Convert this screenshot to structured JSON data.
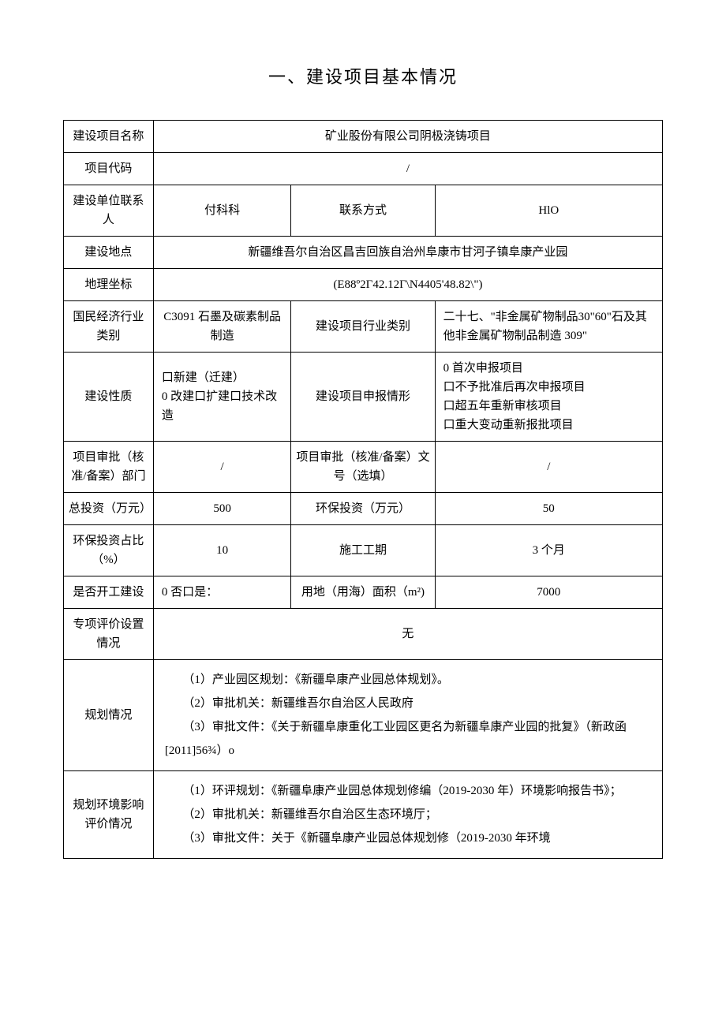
{
  "title": "一、建设项目基本情况",
  "rows": {
    "project_name_label": "建设项目名称",
    "project_name_value": "矿业股份有限公司阴极浇铸项目",
    "project_code_label": "项目代码",
    "project_code_value": "/",
    "contact_person_label": "建设单位联系人",
    "contact_person_value": "付科科",
    "contact_method_label": "联系方式",
    "contact_method_value": "HlO",
    "location_label": "建设地点",
    "location_value": "新疆维吾尔自治区昌吉回族自治州阜康市甘河子镇阜康产业园",
    "coords_label": "地理坐标",
    "coords_value": "(E88º2Γ42.12Γ\\N4405'48.82\\\")",
    "industry_cat_label": "国民经济行业类别",
    "industry_cat_value": "C3091 石墨及碳素制品制造",
    "project_industry_label": "建设项目行业类别",
    "project_industry_value": "二十七、\"非金属矿物制品30\"60\"石及其他非金属矿物制品制造 309\"",
    "nature_label": "建设性质",
    "nature_value": "口新建（迁建）\n0 改建口扩建口技术改造",
    "declare_label": "建设项目申报情形",
    "declare_value": "0 首次申报项目\n口不予批准后再次申报项目\n口超五年重新审核项目\n口重大变动重新报批项目",
    "approval_dept_label": "项目审批（核准/备案）部门",
    "approval_dept_value": "/",
    "approval_no_label": "项目审批（核准/备案）文号（选填）",
    "approval_no_value": "/",
    "total_invest_label": "总投资（万元）",
    "total_invest_value": "500",
    "env_invest_label": "环保投资（万元）",
    "env_invest_value": "50",
    "env_ratio_label": "环保投资占比（%）",
    "env_ratio_value": "10",
    "construction_period_label": "施工工期",
    "construction_period_value": "3 个月",
    "started_label": "是否开工建设",
    "started_value": "0 否口是：",
    "land_area_label": "用地（用海）面积（m²)",
    "land_area_value": "7000",
    "special_eval_label": "专项评价设置情况",
    "special_eval_value": "无",
    "planning_label": "规划情况",
    "planning_value": "　　（1）产业园区规划：《新疆阜康产业园总体规划》。\n　　（2）审批机关：新疆维吾尔自治区人民政府\n　　（3）审批文件：《关于新疆阜康重化工业园区更名为新疆阜康产业园的批复》（新政函[2011]56¾）o",
    "env_plan_label": "规划环境影响评价情况",
    "env_plan_value": "　　（1）环评规划：《新疆阜康产业园总体规划修编（2019-2030 年）环境影响报告书》；\n　　（2）审批机关：新疆维吾尔自治区生态环境厅；\n　　（3）审批文件：关于《新疆阜康产业园总体规划修（2019-2030 年环境"
  }
}
